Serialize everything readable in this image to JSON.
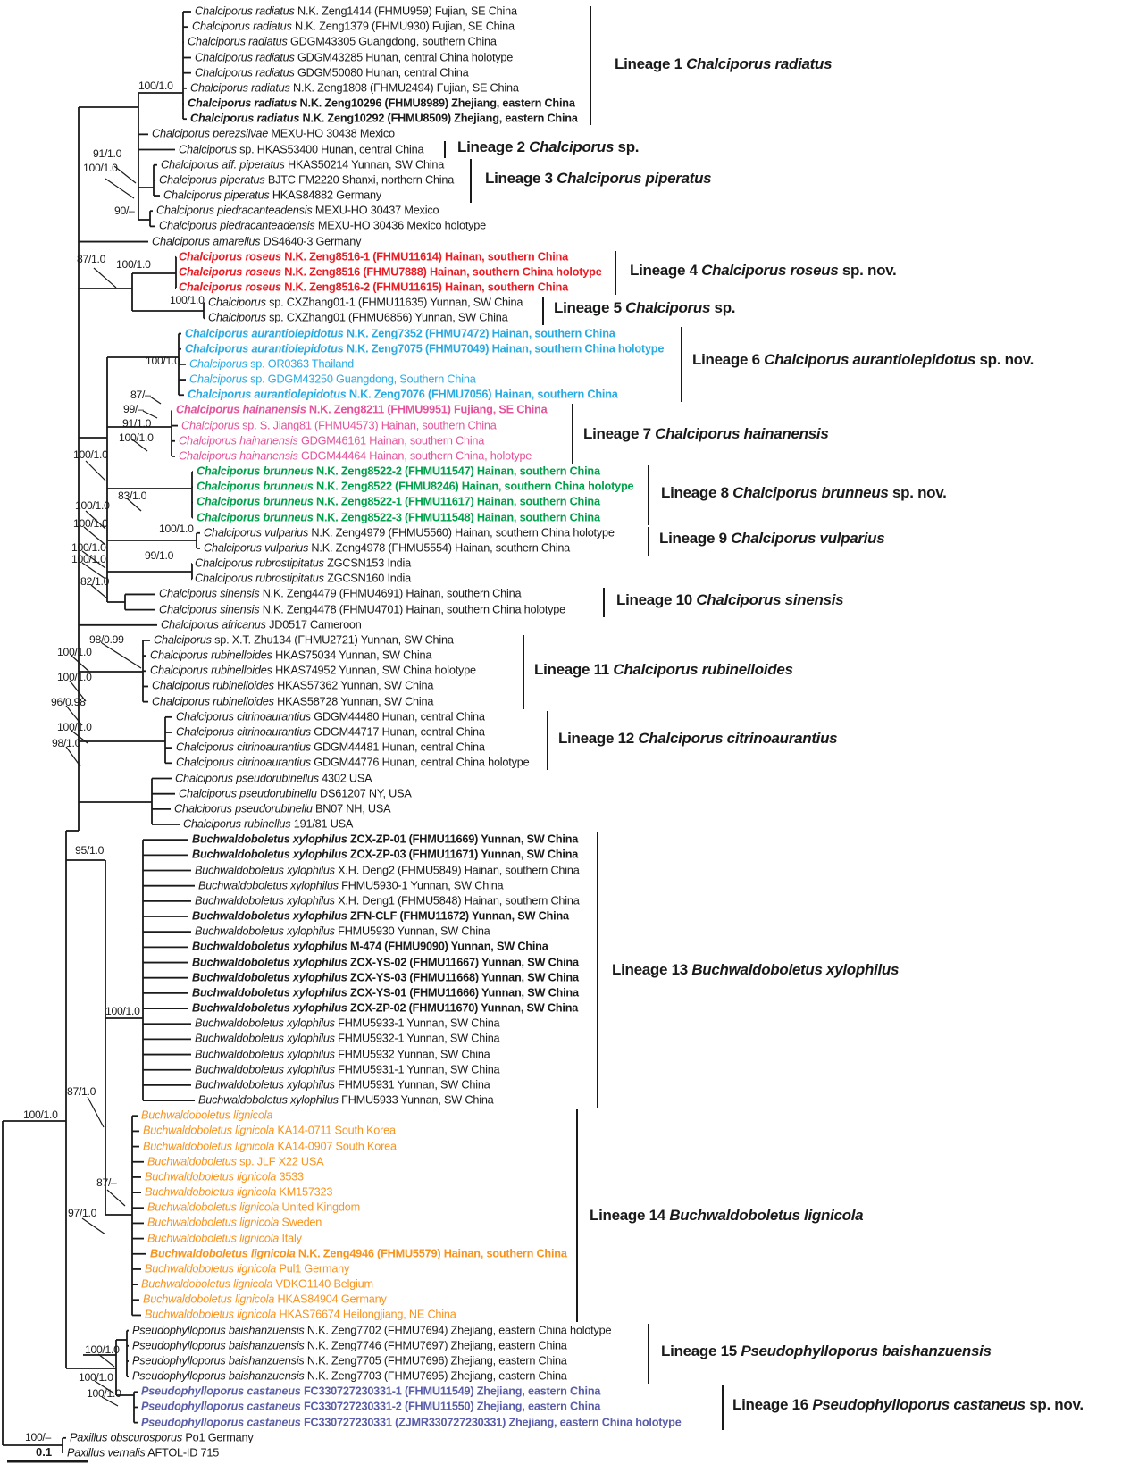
{
  "title": "Phylogenetic tree of Chalciporus, Buchwaldoboletus and Pseudophylloporus",
  "scale": {
    "label": "0.1"
  },
  "colors": {
    "black": "#1a1a1a",
    "red": "#ed1c24",
    "blue": "#29abe2",
    "pink": "#e4549c",
    "green": "#00a14b",
    "orange": "#f7941e",
    "purple": "#5b5fa9"
  },
  "tips": [
    {
      "i": "Chalciporus radiatus",
      "p": "N.K. Zeng1414 (FHMU959) Fujian, SE China"
    },
    {
      "i": "Chalciporus radiatus",
      "p": "N.K. Zeng1379 (FHMU930) Fujian, SE China"
    },
    {
      "i": "Chalciporus radiatus",
      "p": "GDGM43305 Guangdong, southern China"
    },
    {
      "i": "Chalciporus radiatus",
      "p": "GDGM43285 Hunan, central China holotype"
    },
    {
      "i": "Chalciporus radiatus",
      "p": "GDGM50080 Hunan, central China"
    },
    {
      "i": "Chalciporus radiatus",
      "p": "N.K. Zeng1808 (FHMU2494) Fujian, SE China"
    },
    {
      "i": "Chalciporus radiatus",
      "p": "N.K. Zeng10296 (FHMU8989) Zhejiang, eastern China",
      "b": true
    },
    {
      "i": "Chalciporus radiatus",
      "p": "N.K. Zeng10292 (FHMU8509) Zhejiang, eastern China",
      "b": true
    },
    {
      "i": "Chalciporus perezsilvae",
      "p": "MEXU-HO 30438 Mexico"
    },
    {
      "i": "Chalciporus",
      "p": "sp. HKAS53400 Hunan, central China"
    },
    {
      "i": "Chalciporus aff. piperatus",
      "p": "HKAS50214 Yunnan, SW China"
    },
    {
      "i": "Chalciporus piperatus",
      "p": "BJTC FM2220 Shanxi, northern China"
    },
    {
      "i": "Chalciporus piperatus",
      "p": "HKAS84882 Germany"
    },
    {
      "i": "Chalciporus piedracanteadensis",
      "p": "MEXU-HO 30437 Mexico"
    },
    {
      "i": "Chalciporus piedracanteadensis",
      "p": "MEXU-HO 30436 Mexico holotype"
    },
    {
      "i": "Chalciporus amarellus",
      "p": "DS4640-3 Germany"
    },
    {
      "i": "Chalciporus roseus",
      "p": "N.K. Zeng8516-1 (FHMU11614) Hainan, southern China",
      "c": "red",
      "b": true
    },
    {
      "i": "Chalciporus roseus",
      "p": "N.K. Zeng8516 (FHMU7888) Hainan, southern China holotype",
      "c": "red",
      "b": true
    },
    {
      "i": "Chalciporus roseus",
      "p": "N.K. Zeng8516-2 (FHMU11615) Hainan, southern China",
      "c": "red",
      "b": true
    },
    {
      "i": "Chalciporus",
      "p": "sp. CXZhang01-1 (FHMU11635) Yunnan, SW China"
    },
    {
      "i": "Chalciporus",
      "p": "sp. CXZhang01 (FHMU6856) Yunnan, SW China"
    },
    {
      "i": "Chalciporus aurantiolepidotus",
      "p": "N.K. Zeng7352 (FHMU7472) Hainan, southern China",
      "c": "blue",
      "b": true
    },
    {
      "i": "Chalciporus aurantiolepidotus",
      "p": "N.K. Zeng7075 (FHMU7049) Hainan, southern China holotype",
      "c": "blue",
      "b": true
    },
    {
      "i": "Chalciporus",
      "p": "sp. OR0363 Thailand",
      "c": "blue"
    },
    {
      "i": "Chalciporus",
      "p": "sp. GDGM43250 Guangdong, Southern China",
      "c": "blue"
    },
    {
      "i": "Chalciporus aurantiolepidotus",
      "p": "N.K. Zeng7076 (FHMU7056) Hainan, southern China",
      "c": "blue",
      "b": true
    },
    {
      "i": "Chalciporus hainanensis",
      "p": "N.K. Zeng8211 (FHMU9951) Fujiang, SE China",
      "c": "pink",
      "b": true
    },
    {
      "i": "Chalciporus",
      "p": "sp. S. Jiang81 (FHMU4573) Hainan, southern China",
      "c": "pink"
    },
    {
      "i": "Chalciporus hainanensis",
      "p": "GDGM46161 Hainan, southern China",
      "c": "pink"
    },
    {
      "i": "Chalciporus hainanensis",
      "p": "GDGM44464 Hainan, southern China, holotype",
      "c": "pink"
    },
    {
      "i": "Chalciporus brunneus",
      "p": "N.K. Zeng8522-2 (FHMU11547) Hainan, southern China",
      "c": "green",
      "b": true
    },
    {
      "i": "Chalciporus brunneus",
      "p": "N.K. Zeng8522 (FHMU8246) Hainan, southern China holotype",
      "c": "green",
      "b": true
    },
    {
      "i": "Chalciporus brunneus",
      "p": "N.K. Zeng8522-1 (FHMU11617) Hainan, southern China",
      "c": "green",
      "b": true
    },
    {
      "i": "Chalciporus brunneus",
      "p": "N.K. Zeng8522-3 (FHMU11548) Hainan, southern China",
      "c": "green",
      "b": true
    },
    {
      "i": "Chalciporus vulparius",
      "p": "N.K. Zeng4979 (FHMU5560) Hainan, southern China holotype"
    },
    {
      "i": "Chalciporus vulparius",
      "p": "N.K. Zeng4978 (FHMU5554) Hainan, southern China"
    },
    {
      "i": "Chalciporus rubrostipitatus",
      "p": "ZGCSN153 India"
    },
    {
      "i": "Chalciporus rubrostipitatus",
      "p": "ZGCSN160 India"
    },
    {
      "i": "Chalciporus sinensis",
      "p": "N.K. Zeng4479 (FHMU4691) Hainan, southern China"
    },
    {
      "i": "Chalciporus sinensis",
      "p": "N.K. Zeng4478 (FHMU4701) Hainan, southern China holotype"
    },
    {
      "i": "Chalciporus africanus",
      "p": "JD0517 Cameroon"
    },
    {
      "i": "Chalciporus",
      "p": "sp. X.T. Zhu134 (FHMU2721) Yunnan, SW China"
    },
    {
      "i": "Chalciporus rubinelloides",
      "p": "HKAS75034 Yunnan, SW China"
    },
    {
      "i": "Chalciporus rubinelloides",
      "p": "HKAS74952 Yunnan, SW China holotype"
    },
    {
      "i": "Chalciporus rubinelloides",
      "p": "HKAS57362 Yunnan, SW China"
    },
    {
      "i": "Chalciporus rubinelloides",
      "p": "HKAS58728 Yunnan, SW China"
    },
    {
      "i": "Chalciporus citrinoaurantius",
      "p": "GDGM44480 Hunan, central China"
    },
    {
      "i": "Chalciporus citrinoaurantius",
      "p": "GDGM44717 Hunan, central China"
    },
    {
      "i": "Chalciporus citrinoaurantius",
      "p": "GDGM44481 Hunan, central China"
    },
    {
      "i": "Chalciporus citrinoaurantius",
      "p": "GDGM44776 Hunan, central China holotype"
    },
    {
      "i": "Chalciporus pseudorubinellus",
      "p": "4302 USA"
    },
    {
      "i": "Chalciporus pseudorubinellu",
      "p": "DS61207 NY, USA"
    },
    {
      "i": "Chalciporus pseudorubinellu",
      "p": "BN07 NH, USA"
    },
    {
      "i": "Chalciporus rubinellus",
      "p": "191/81 USA"
    },
    {
      "i": "Buchwaldoboletus xylophilus",
      "p": "ZCX-ZP-01 (FHMU11669) Yunnan, SW China",
      "b": true
    },
    {
      "i": "Buchwaldoboletus xylophilus",
      "p": "ZCX-ZP-03 (FHMU11671) Yunnan, SW China",
      "b": true
    },
    {
      "i": "Buchwaldoboletus xylophilus",
      "p": "X.H. Deng2 (FHMU5849) Hainan, southern China"
    },
    {
      "i": "Buchwaldoboletus xylophilus",
      "p": "FHMU5930-1 Yunnan, SW China"
    },
    {
      "i": "Buchwaldoboletus xylophilus",
      "p": "X.H. Deng1 (FHMU5848) Hainan, southern China"
    },
    {
      "i": "Buchwaldoboletus xylophilus",
      "p": "ZFN-CLF (FHMU11672) Yunnan, SW China",
      "b": true
    },
    {
      "i": "Buchwaldoboletus xylophilus",
      "p": "FHMU5930 Yunnan, SW China"
    },
    {
      "i": "Buchwaldoboletus xylophilus",
      "p": "M-474 (FHMU9090) Yunnan, SW China",
      "b": true
    },
    {
      "i": "Buchwaldoboletus xylophilus",
      "p": "ZCX-YS-02 (FHMU11667) Yunnan, SW China",
      "b": true
    },
    {
      "i": "Buchwaldoboletus xylophilus",
      "p": "ZCX-YS-03 (FHMU11668) Yunnan, SW China",
      "b": true
    },
    {
      "i": "Buchwaldoboletus xylophilus",
      "p": "ZCX-YS-01 (FHMU11666) Yunnan, SW China",
      "b": true
    },
    {
      "i": "Buchwaldoboletus xylophilus",
      "p": "ZCX-ZP-02 (FHMU11670) Yunnan, SW China",
      "b": true
    },
    {
      "i": "Buchwaldoboletus xylophilus",
      "p": "FHMU5933-1 Yunnan, SW China"
    },
    {
      "i": "Buchwaldoboletus xylophilus",
      "p": "FHMU5932-1 Yunnan, SW China"
    },
    {
      "i": "Buchwaldoboletus xylophilus",
      "p": "FHMU5932 Yunnan, SW China"
    },
    {
      "i": "Buchwaldoboletus xylophilus",
      "p": "FHMU5931-1 Yunnan, SW China"
    },
    {
      "i": "Buchwaldoboletus xylophilus",
      "p": "FHMU5931 Yunnan, SW China"
    },
    {
      "i": "Buchwaldoboletus xylophilus",
      "p": "FHMU5933 Yunnan, SW China"
    },
    {
      "i": "Buchwaldoboletus lignicola",
      "p": "",
      "c": "orange"
    },
    {
      "i": "Buchwaldoboletus lignicola",
      "p": "KA14-0711 South Korea",
      "c": "orange"
    },
    {
      "i": "Buchwaldoboletus lignicola",
      "p": "KA14-0907 South Korea",
      "c": "orange"
    },
    {
      "i": "Buchwaldoboletus",
      "p": "sp. JLF X22 USA",
      "c": "orange"
    },
    {
      "i": "Buchwaldoboletus lignicola",
      "p": "3533",
      "c": "orange"
    },
    {
      "i": "Buchwaldoboletus lignicola",
      "p": "KM157323",
      "c": "orange"
    },
    {
      "i": "Buchwaldoboletus lignicola",
      "p": "United Kingdom",
      "c": "orange"
    },
    {
      "i": "Buchwaldoboletus lignicola",
      "p": "Sweden",
      "c": "orange"
    },
    {
      "i": "Buchwaldoboletus lignicola",
      "p": "Italy",
      "c": "orange"
    },
    {
      "i": "Buchwaldoboletus lignicola",
      "p": "N.K. Zeng4946 (FHMU5579) Hainan, southern China",
      "c": "orange",
      "b": true
    },
    {
      "i": "Buchwaldoboletus lignicola",
      "p": "Pul1 Germany",
      "c": "orange"
    },
    {
      "i": "Buchwaldoboletus lignicola",
      "p": "VDKO1140 Belgium",
      "c": "orange"
    },
    {
      "i": "Buchwaldoboletus lignicola",
      "p": "HKAS84904 Germany",
      "c": "orange"
    },
    {
      "i": "Buchwaldoboletus lignicola",
      "p": "HKAS76674 Heilongjiang, NE China",
      "c": "orange"
    },
    {
      "i": "Pseudophylloporus baishanzuensis",
      "p": "N.K. Zeng7702 (FHMU7694) Zhejiang, eastern China holotype"
    },
    {
      "i": "Pseudophylloporus baishanzuensis",
      "p": "N.K. Zeng7746 (FHMU7697) Zhejiang, eastern China"
    },
    {
      "i": "Pseudophylloporus baishanzuensis",
      "p": "N.K. Zeng7705 (FHMU7696) Zhejiang, eastern China"
    },
    {
      "i": "Pseudophylloporus baishanzuensis",
      "p": "N.K. Zeng7703 (FHMU7695) Zhejiang, eastern China"
    },
    {
      "i": "Pseudophylloporus castaneus",
      "p": "FC330727230331-1 (FHMU11549) Zhejiang, eastern China",
      "c": "purple",
      "b": true
    },
    {
      "i": "Pseudophylloporus castaneus",
      "p": "FC330727230331-2 (FHMU11550) Zhejiang, eastern China",
      "c": "purple",
      "b": true
    },
    {
      "i": "Pseudophylloporus castaneus",
      "p": "FC330727230331 (ZJMR330727230331) Zhejiang, eastern China holotype",
      "c": "purple",
      "b": true
    },
    {
      "i": "Paxillus obscurosporus",
      "p": "Po1 Germany"
    },
    {
      "i": "Paxillus vernalis",
      "p": "AFTOL-ID 715"
    }
  ],
  "lineages": [
    {
      "label": "Lineage 1",
      "taxon": "Chalciporus radiatus",
      "suffix": ""
    },
    {
      "label": "Lineage 2",
      "taxon": "Chalciporus",
      "suffix": "sp."
    },
    {
      "label": "Lineage 3",
      "taxon": "Chalciporus piperatus",
      "suffix": ""
    },
    {
      "label": "Lineage 4",
      "taxon": "Chalciporus roseus",
      "suffix": "sp. nov."
    },
    {
      "label": "Lineage 5",
      "taxon": "Chalciporus",
      "suffix": "sp."
    },
    {
      "label": "Lineage 6",
      "taxon": "Chalciporus aurantiolepidotus",
      "suffix": "sp. nov."
    },
    {
      "label": "Lineage 7",
      "taxon": "Chalciporus hainanensis",
      "suffix": ""
    },
    {
      "label": "Lineage 8",
      "taxon": "Chalciporus brunneus",
      "suffix": "sp. nov."
    },
    {
      "label": "Lineage 9",
      "taxon": "Chalciporus vulparius",
      "suffix": ""
    },
    {
      "label": "Lineage 10",
      "taxon": "Chalciporus sinensis",
      "suffix": ""
    },
    {
      "label": "Lineage 11",
      "taxon": "Chalciporus rubinelloides",
      "suffix": ""
    },
    {
      "label": "Lineage 12",
      "taxon": "Chalciporus citrinoaurantius",
      "suffix": ""
    },
    {
      "label": "Lineage 13",
      "taxon": "Buchwaldoboletus xylophilus",
      "suffix": ""
    },
    {
      "label": "Lineage 14",
      "taxon": "Buchwaldoboletus lignicola",
      "suffix": ""
    },
    {
      "label": "Lineage 15",
      "taxon": "Pseudophylloporus baishanzuensis",
      "suffix": ""
    },
    {
      "label": "Lineage 16",
      "taxon": "Pseudophylloporus castaneus",
      "suffix": "sp. nov."
    }
  ],
  "supports": [
    "100/1.0",
    "91/1.0",
    "100/1.0",
    "90/–",
    "87/1.0",
    "100/1.0",
    "100/1.0",
    "100/1.0",
    "87/–",
    "99/–",
    "91/1.0",
    "100/1.0",
    "100/1.0",
    "83/1.0",
    "100/1.0",
    "100/1.0",
    "100/1.0",
    "100/1.0",
    "82/1.0",
    "100/1.0",
    "99/1.0",
    "98/0.99",
    "100/1.0",
    "100/1.0",
    "96/0.98",
    "100/1.0",
    "98/1.0",
    "95/1.0",
    "100/1.0",
    "87/1.0",
    "100/1.0",
    "87/–",
    "97/1.0",
    "100/1.0",
    "100/1.0",
    "100/1.0",
    "100/–"
  ]
}
